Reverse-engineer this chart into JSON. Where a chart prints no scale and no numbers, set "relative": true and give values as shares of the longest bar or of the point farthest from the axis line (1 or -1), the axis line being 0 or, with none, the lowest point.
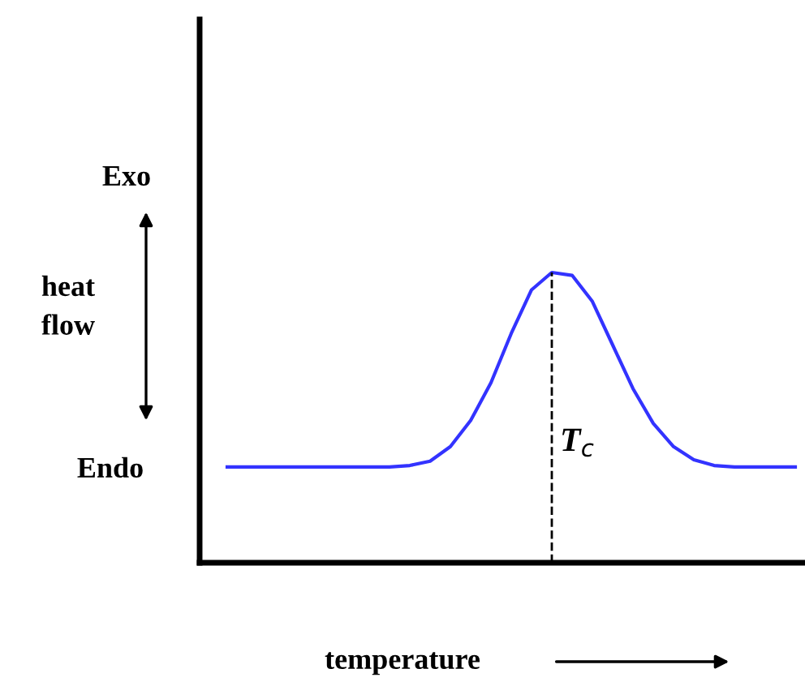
{
  "chart_data": {
    "type": "line",
    "relative": true,
    "xlabel": "temperature",
    "ylabel": "heat\nflow",
    "annotations": [
      "Exo",
      "Endo",
      "T$_{c}$"
    ],
    "categories": [
      null,
      null,
      null,
      null,
      null,
      null,
      null,
      null,
      null,
      null,
      null,
      null,
      null,
      null,
      null,
      null,
      null,
      null,
      null,
      null,
      null,
      null,
      null,
      null,
      null,
      null,
      null,
      null,
      null
    ],
    "series": [
      {
        "color": "#3333ff",
        "values": [
          0.33,
          0.33,
          0.33,
          0.33,
          0.33,
          0.33,
          0.33,
          0.33,
          0.33,
          0.335,
          0.35,
          0.4,
          0.49,
          0.62,
          0.79,
          0.94,
          1.0,
          0.99,
          0.9,
          0.75,
          0.6,
          0.48,
          0.4,
          0.355,
          0.335,
          0.33,
          0.33,
          0.33,
          0.33
        ]
      }
    ],
    "grid": false,
    "legend": false,
    "marker": "none",
    "line_style": "solid"
  }
}
